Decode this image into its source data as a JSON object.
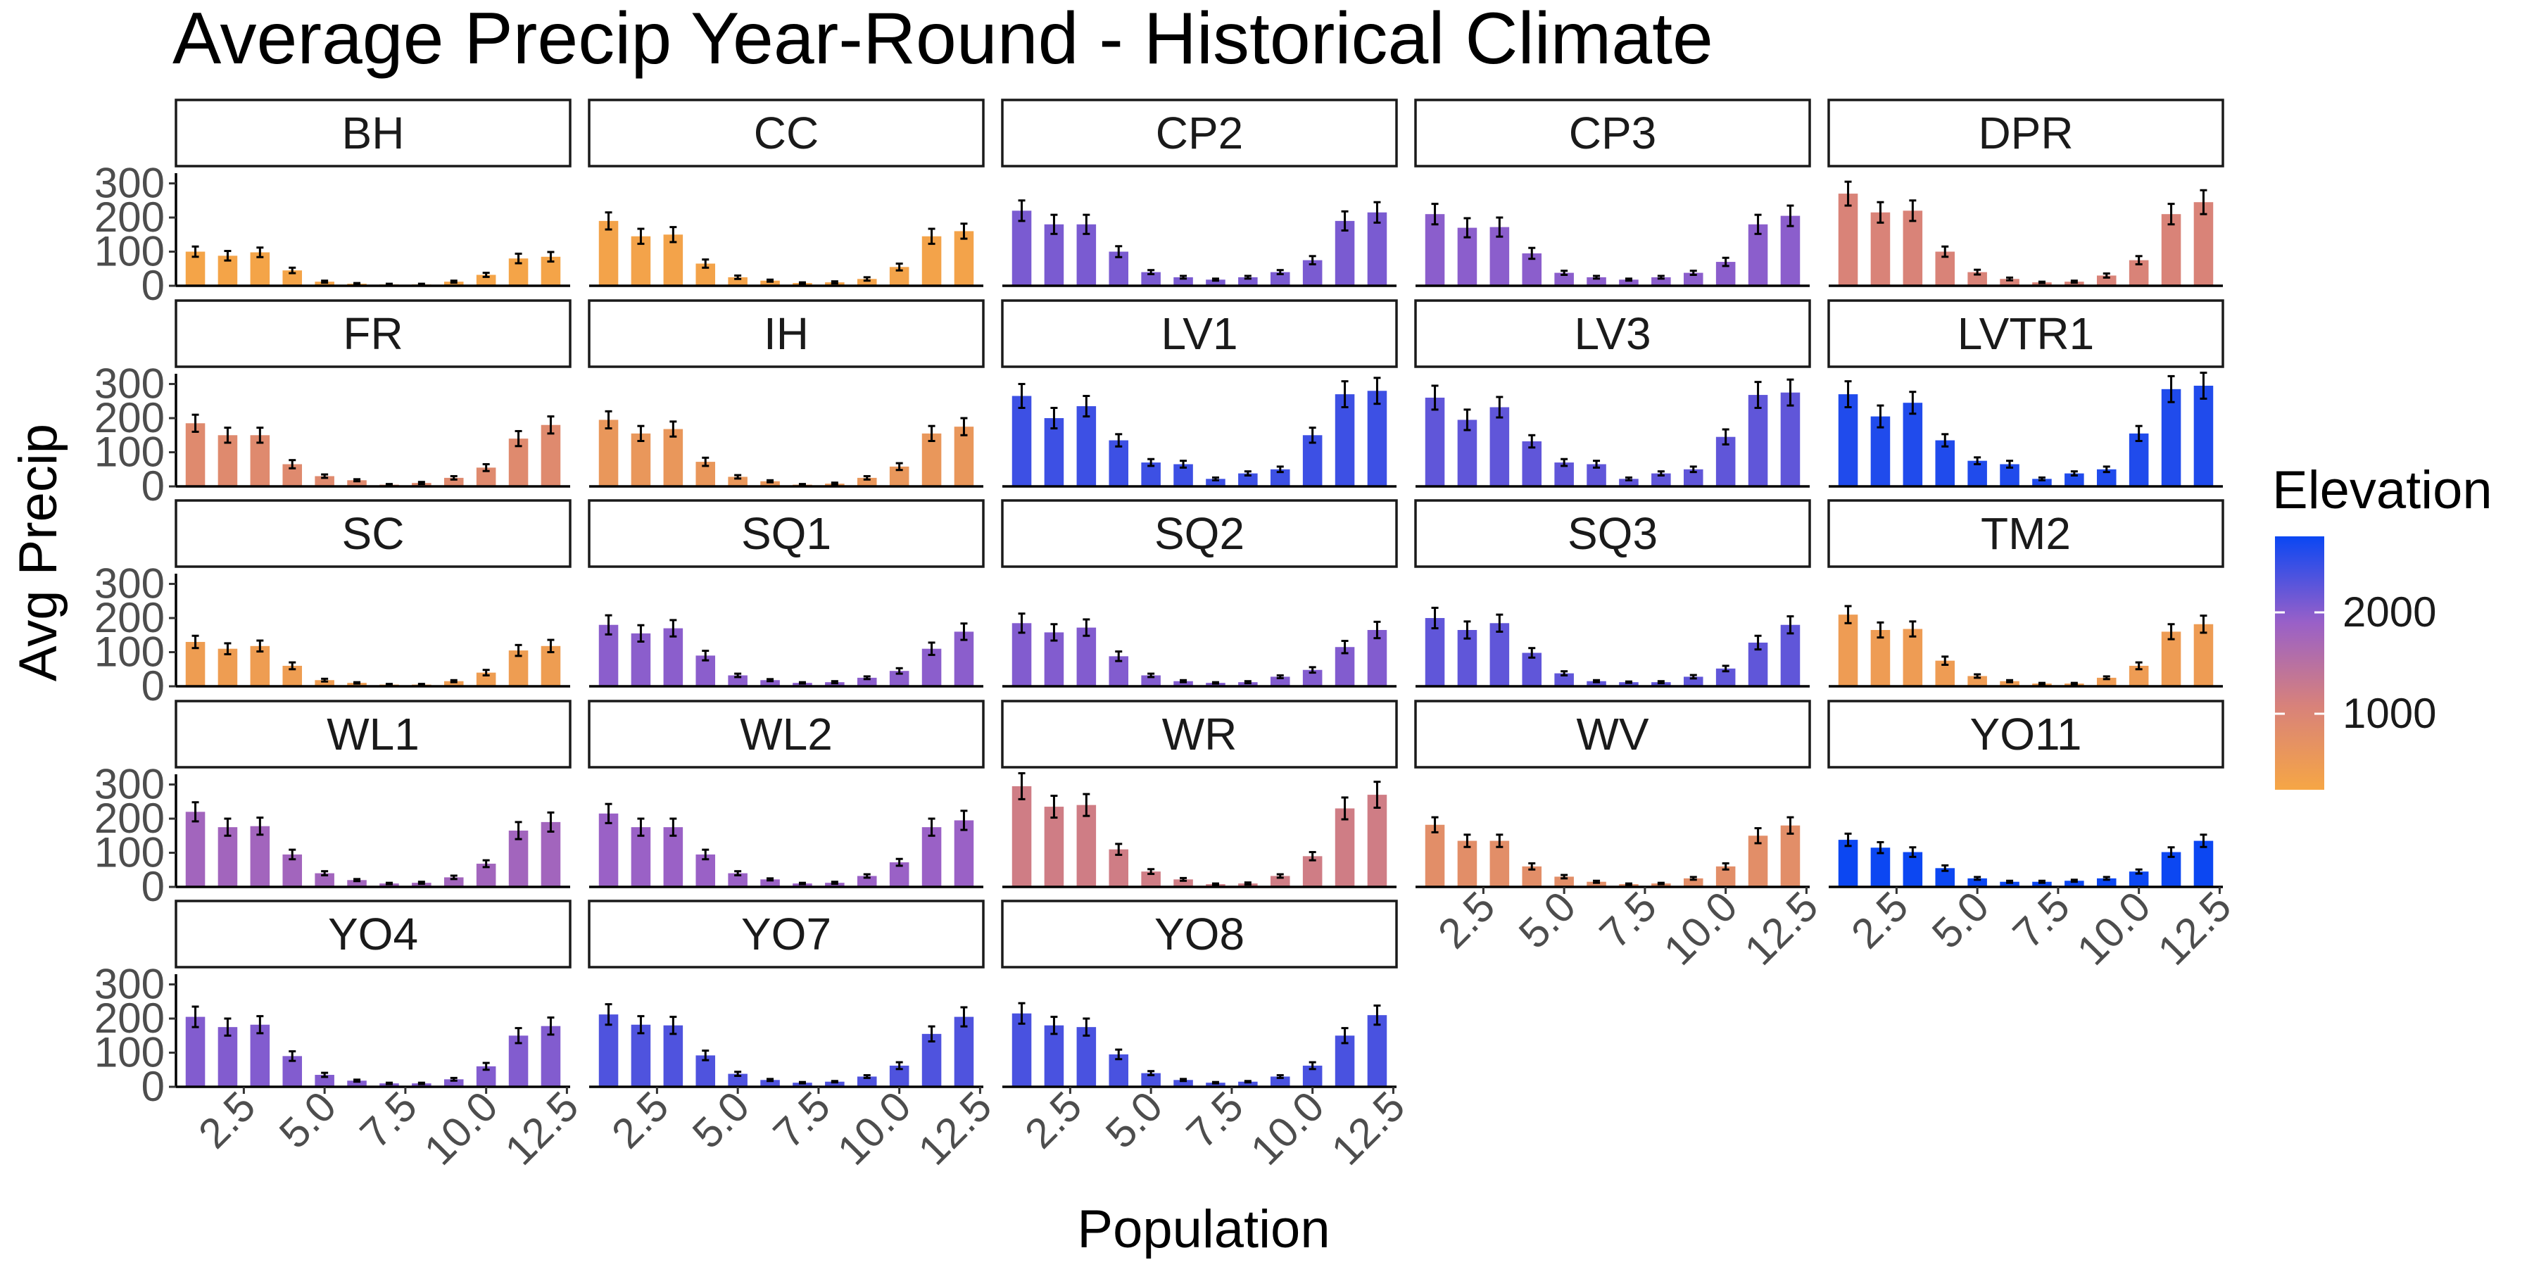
{
  "chart_data": {
    "type": "bar",
    "title": "Average Precip Year-Round - Historical Climate",
    "xlabel": "Population",
    "ylabel": "Avg Precip",
    "x": [
      1,
      2,
      3,
      4,
      5,
      6,
      7,
      8,
      9,
      10,
      11,
      12
    ],
    "xlim": [
      0.4,
      12.6
    ],
    "ylim": [
      0,
      330
    ],
    "x_ticks": [
      2.5,
      5.0,
      7.5,
      10.0,
      12.5
    ],
    "x_tick_labels": [
      "2.5",
      "5.0",
      "7.5",
      "10.0",
      "12.5"
    ],
    "y_ticks": [
      0,
      100,
      200,
      300
    ],
    "y_tick_labels": [
      "0",
      "100",
      "200",
      "300"
    ],
    "grid": false,
    "legend": {
      "title": "Elevation",
      "type": "colorbar",
      "placement": "right",
      "range": [
        250,
        2750
      ],
      "ticks": [
        1000,
        2000
      ],
      "tick_labels": [
        "1000",
        "2000"
      ],
      "colors": [
        "#f6a645",
        "#d8827a",
        "#9960c8",
        "#0a47f3"
      ]
    },
    "panels": [
      {
        "name": "BH",
        "elevation": 300,
        "values": [
          100,
          88,
          98,
          45,
          12,
          6,
          4,
          4,
          12,
          32,
          80,
          85
        ],
        "errors": [
          15,
          14,
          14,
          8,
          3,
          2,
          2,
          2,
          3,
          6,
          14,
          14
        ]
      },
      {
        "name": "CC",
        "elevation": 330,
        "values": [
          190,
          145,
          150,
          65,
          25,
          15,
          8,
          10,
          20,
          55,
          145,
          160
        ],
        "errors": [
          25,
          22,
          22,
          12,
          5,
          3,
          2,
          3,
          5,
          10,
          22,
          22
        ]
      },
      {
        "name": "CP2",
        "elevation": 2100,
        "values": [
          220,
          180,
          180,
          100,
          40,
          25,
          18,
          25,
          40,
          75,
          190,
          215
        ],
        "errors": [
          30,
          28,
          28,
          16,
          6,
          4,
          3,
          4,
          6,
          12,
          28,
          30
        ]
      },
      {
        "name": "CP3",
        "elevation": 2000,
        "values": [
          210,
          170,
          172,
          95,
          38,
          25,
          18,
          25,
          38,
          70,
          180,
          205
        ],
        "errors": [
          30,
          28,
          28,
          16,
          6,
          4,
          3,
          4,
          6,
          12,
          28,
          30
        ]
      },
      {
        "name": "DPR",
        "elevation": 1050,
        "values": [
          270,
          215,
          220,
          100,
          40,
          20,
          10,
          12,
          30,
          75,
          210,
          245
        ],
        "errors": [
          35,
          30,
          30,
          15,
          7,
          4,
          2,
          3,
          6,
          12,
          30,
          35
        ]
      },
      {
        "name": "FR",
        "elevation": 900,
        "values": [
          185,
          150,
          150,
          65,
          30,
          18,
          5,
          10,
          25,
          55,
          140,
          180
        ],
        "errors": [
          25,
          22,
          22,
          12,
          5,
          3,
          2,
          3,
          5,
          10,
          22,
          25
        ]
      },
      {
        "name": "IH",
        "elevation": 600,
        "values": [
          195,
          155,
          168,
          72,
          28,
          15,
          5,
          8,
          25,
          58,
          155,
          175
        ],
        "errors": [
          25,
          22,
          22,
          12,
          5,
          3,
          2,
          3,
          5,
          10,
          22,
          25
        ]
      },
      {
        "name": "LV1",
        "elevation": 2450,
        "values": [
          265,
          200,
          235,
          135,
          70,
          65,
          22,
          38,
          50,
          150,
          270,
          280
        ],
        "errors": [
          35,
          30,
          30,
          18,
          10,
          10,
          4,
          6,
          8,
          22,
          38,
          38
        ]
      },
      {
        "name": "LV3",
        "elevation": 2250,
        "values": [
          260,
          195,
          232,
          132,
          70,
          65,
          22,
          38,
          50,
          145,
          268,
          275
        ],
        "errors": [
          35,
          30,
          30,
          18,
          10,
          10,
          4,
          6,
          8,
          22,
          38,
          38
        ]
      },
      {
        "name": "LVTR1",
        "elevation": 2620,
        "values": [
          270,
          205,
          245,
          135,
          75,
          65,
          22,
          38,
          50,
          155,
          285,
          295
        ],
        "errors": [
          38,
          32,
          32,
          18,
          10,
          10,
          4,
          6,
          8,
          22,
          38,
          38
        ]
      },
      {
        "name": "SC",
        "elevation": 460,
        "values": [
          130,
          110,
          118,
          60,
          18,
          10,
          5,
          5,
          15,
          40,
          105,
          118
        ],
        "errors": [
          18,
          16,
          16,
          10,
          4,
          2,
          2,
          2,
          3,
          8,
          16,
          18
        ]
      },
      {
        "name": "SQ1",
        "elevation": 2000,
        "values": [
          180,
          155,
          170,
          90,
          32,
          18,
          10,
          12,
          25,
          45,
          110,
          160
        ],
        "errors": [
          28,
          24,
          24,
          14,
          5,
          3,
          2,
          3,
          4,
          8,
          18,
          24
        ]
      },
      {
        "name": "SQ2",
        "elevation": 2050,
        "values": [
          185,
          158,
          172,
          88,
          32,
          15,
          10,
          12,
          28,
          48,
          115,
          165
        ],
        "errors": [
          28,
          24,
          24,
          14,
          5,
          3,
          2,
          3,
          4,
          8,
          18,
          24
        ]
      },
      {
        "name": "SQ3",
        "elevation": 2250,
        "values": [
          200,
          165,
          185,
          98,
          38,
          15,
          12,
          12,
          28,
          52,
          128,
          180
        ],
        "errors": [
          30,
          25,
          25,
          14,
          6,
          3,
          2,
          3,
          5,
          8,
          20,
          25
        ]
      },
      {
        "name": "TM2",
        "elevation": 480,
        "values": [
          210,
          165,
          168,
          75,
          30,
          15,
          8,
          8,
          25,
          60,
          160,
          182
        ],
        "errors": [
          25,
          22,
          22,
          12,
          5,
          3,
          2,
          2,
          4,
          10,
          22,
          25
        ]
      },
      {
        "name": "WL1",
        "elevation": 1800,
        "values": [
          220,
          175,
          178,
          95,
          40,
          20,
          10,
          12,
          28,
          68,
          165,
          190
        ],
        "errors": [
          28,
          25,
          25,
          14,
          6,
          3,
          2,
          3,
          5,
          10,
          25,
          28
        ]
      },
      {
        "name": "WL2",
        "elevation": 1900,
        "values": [
          215,
          175,
          175,
          95,
          40,
          22,
          10,
          12,
          32,
          72,
          175,
          195
        ],
        "errors": [
          28,
          25,
          25,
          14,
          6,
          3,
          2,
          3,
          5,
          10,
          25,
          28
        ]
      },
      {
        "name": "WR",
        "elevation": 1200,
        "values": [
          295,
          235,
          240,
          110,
          45,
          22,
          8,
          10,
          32,
          90,
          230,
          270
        ],
        "errors": [
          38,
          32,
          32,
          16,
          7,
          4,
          2,
          3,
          5,
          12,
          32,
          38
        ]
      },
      {
        "name": "WV",
        "elevation": 800,
        "values": [
          182,
          135,
          135,
          60,
          30,
          15,
          8,
          10,
          25,
          60,
          150,
          180
        ],
        "errors": [
          22,
          18,
          18,
          9,
          5,
          3,
          2,
          2,
          4,
          9,
          22,
          24
        ]
      },
      {
        "name": "YO11",
        "elevation": 2740,
        "values": [
          138,
          115,
          102,
          55,
          25,
          15,
          15,
          18,
          25,
          45,
          102,
          135
        ],
        "errors": [
          18,
          16,
          14,
          8,
          4,
          3,
          3,
          3,
          4,
          6,
          14,
          18
        ]
      },
      {
        "name": "YO4",
        "elevation": 2050,
        "values": [
          205,
          175,
          182,
          90,
          35,
          18,
          10,
          10,
          22,
          60,
          150,
          178
        ],
        "errors": [
          30,
          25,
          25,
          14,
          6,
          3,
          2,
          2,
          4,
          10,
          22,
          25
        ]
      },
      {
        "name": "YO7",
        "elevation": 2350,
        "values": [
          212,
          182,
          180,
          92,
          38,
          20,
          12,
          15,
          30,
          62,
          155,
          205
        ],
        "errors": [
          30,
          25,
          25,
          14,
          6,
          3,
          2,
          2,
          4,
          10,
          22,
          28
        ]
      },
      {
        "name": "YO8",
        "elevation": 2380,
        "values": [
          215,
          180,
          175,
          95,
          40,
          20,
          12,
          15,
          30,
          62,
          150,
          210
        ],
        "errors": [
          30,
          25,
          25,
          14,
          6,
          3,
          2,
          2,
          4,
          10,
          22,
          28
        ]
      }
    ]
  }
}
